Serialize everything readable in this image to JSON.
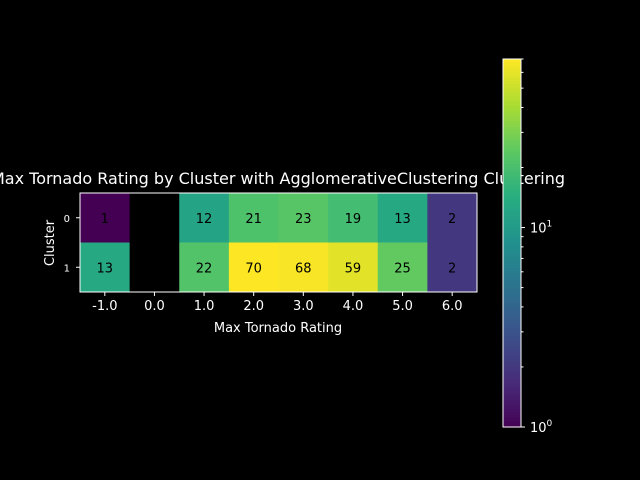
{
  "chart_data": {
    "type": "heatmap",
    "title": "Max Tornado Rating by Cluster with AgglomerativeClustering Clustering",
    "xlabel": "Max Tornado Rating",
    "ylabel": "Cluster",
    "x_categories": [
      "-1.0",
      "0.0",
      "1.0",
      "2.0",
      "3.0",
      "4.0",
      "5.0",
      "6.0"
    ],
    "y_categories": [
      "0",
      "1"
    ],
    "values": [
      [
        1,
        null,
        12,
        21,
        23,
        19,
        13,
        2
      ],
      [
        13,
        null,
        22,
        70,
        68,
        59,
        25,
        2
      ]
    ],
    "colormap": "viridis",
    "color_scale": "log",
    "color_range": [
      1,
      70
    ],
    "colorbar_ticks": [
      {
        "value": 1,
        "base": "10",
        "exp": "0"
      },
      {
        "value": 10,
        "base": "10",
        "exp": "1"
      }
    ],
    "missing_color": "#000000"
  }
}
